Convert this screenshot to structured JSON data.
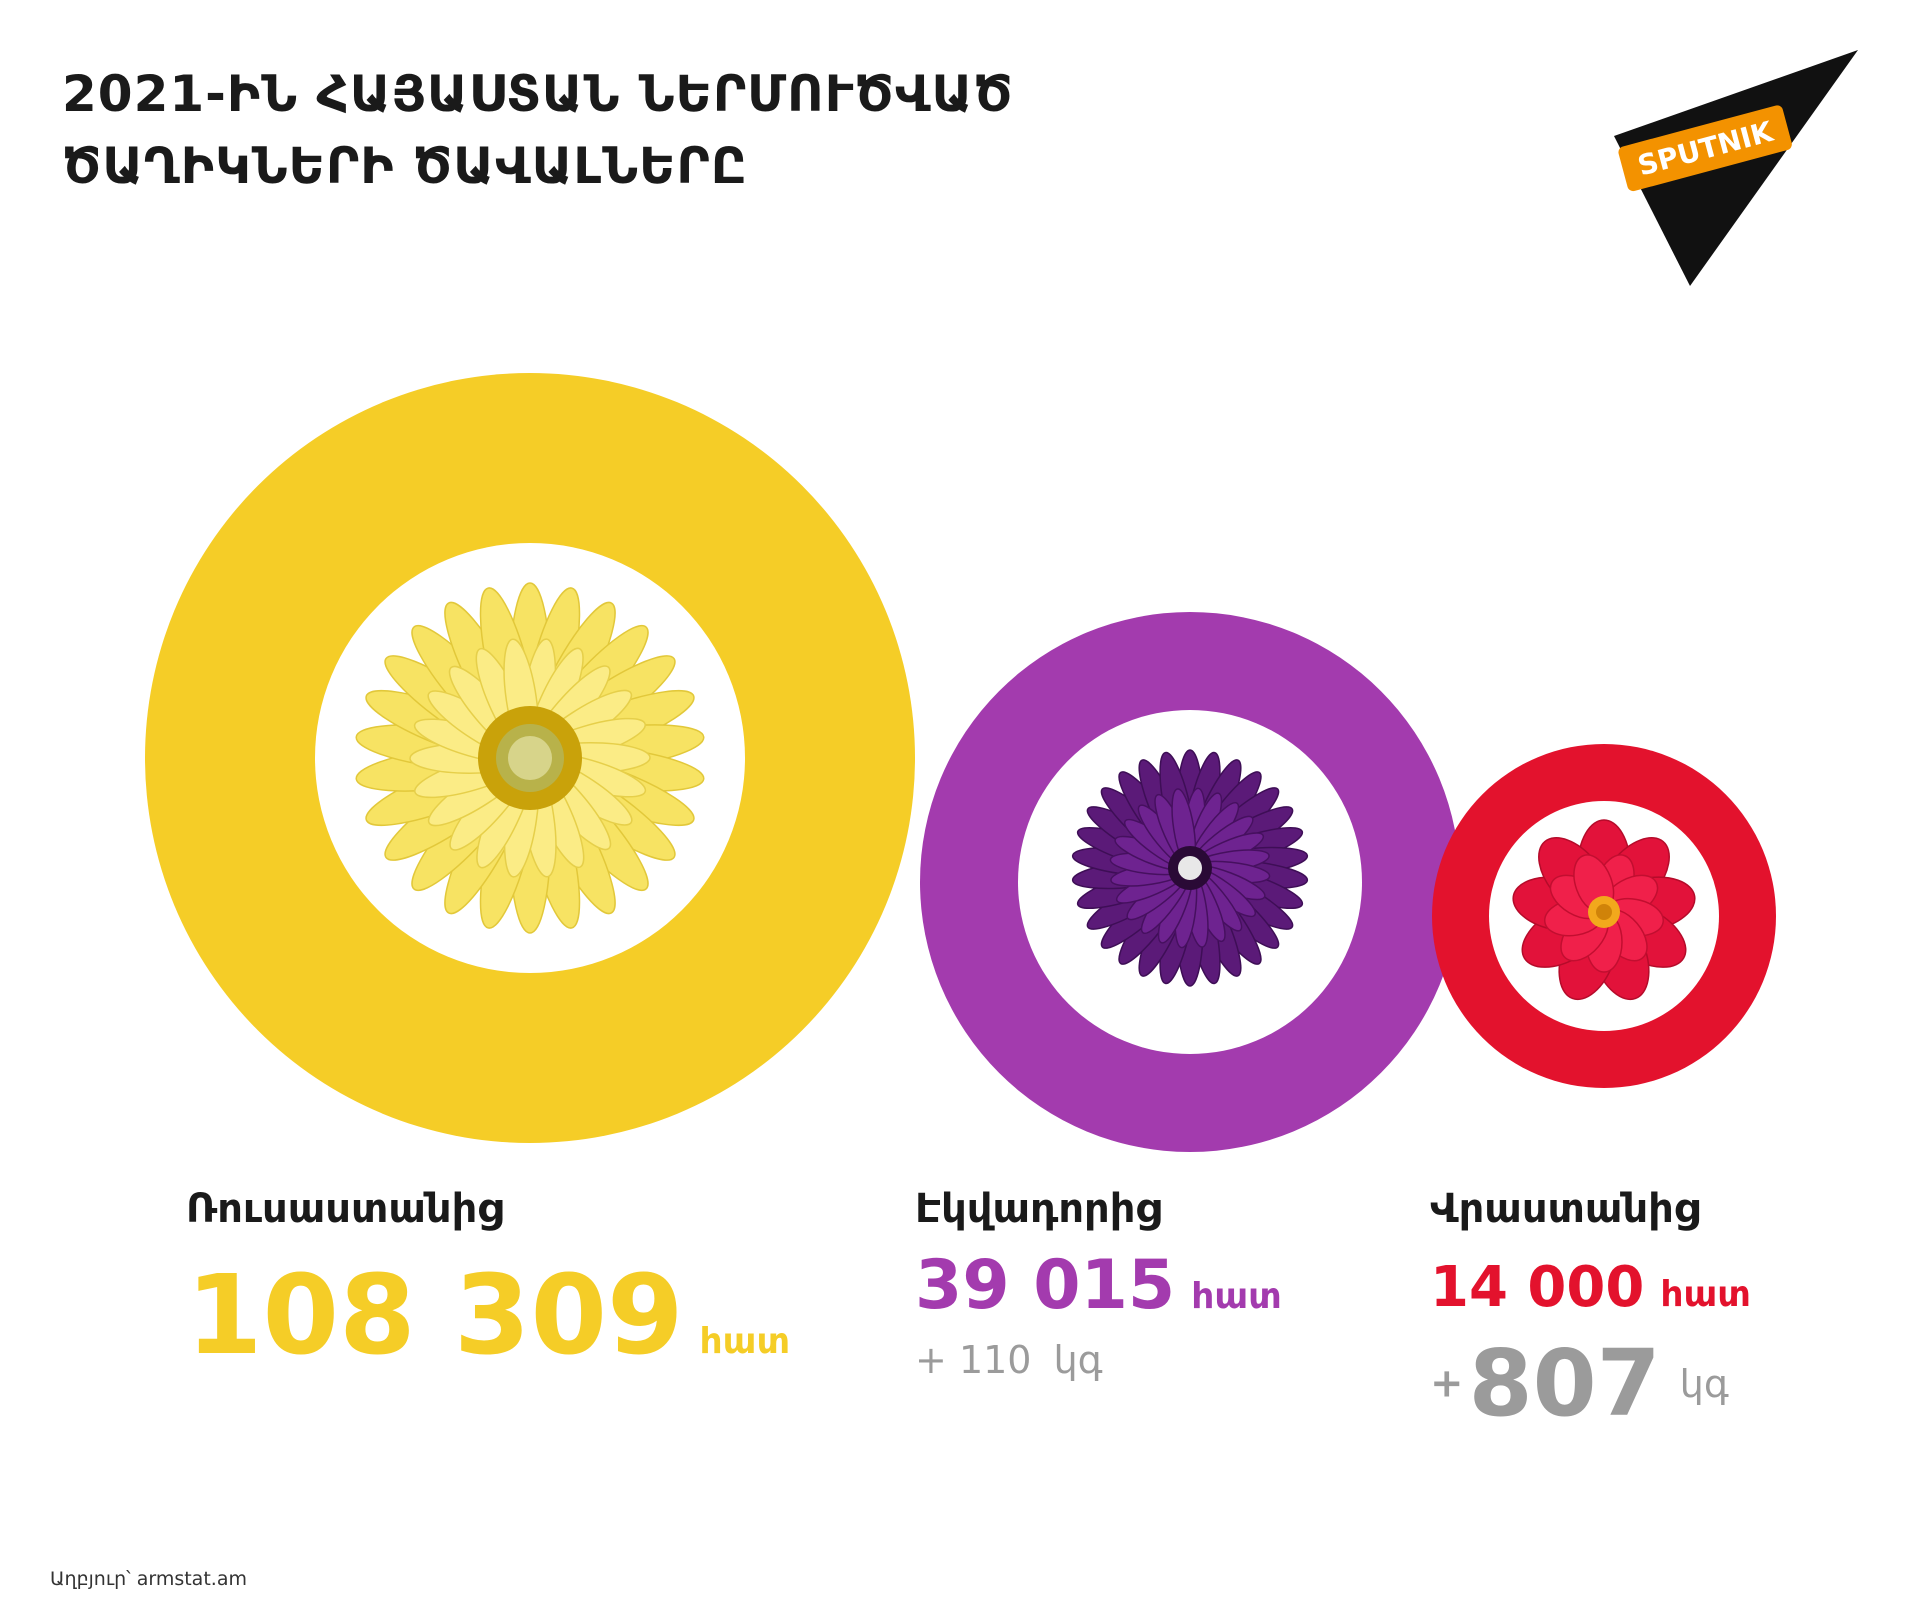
{
  "title_lines": [
    "2021-ԻՆ ՀԱՅԱՍՏԱՆ ՆԵՐՄՈՒԾՎԱԾ",
    "ԾԱՂԻԿՆԵՐԻ ԾԱՎԱԼՆԵՐԸ"
  ],
  "logo_text": "SPUTNIK",
  "source": "Աղբյուր՝ armstat.am",
  "colors": {
    "russia": "#F5CD27",
    "ecuador": "#A33BAE",
    "georgia": "#E3122D",
    "grey": "#9B9B9B"
  },
  "chart_data": {
    "type": "bubble",
    "series": [
      {
        "country": "Ռուսաստանից",
        "value": "108 309",
        "number": 108309,
        "unit": "հատ",
        "extra_plus": "",
        "extra_value": "",
        "extra_unit": "",
        "color": "#F5CD27",
        "flower": "yellow-gerbera"
      },
      {
        "country": "Էկվադորից",
        "value": "39 015",
        "number": 39015,
        "unit": "հատ",
        "extra_plus": "+",
        "extra_value": "110",
        "extra_unit": "կգ",
        "color": "#A33BAE",
        "flower": "purple-gerbera"
      },
      {
        "country": "Վրաստանից",
        "value": "14 000",
        "number": 14000,
        "unit": "հատ",
        "extra_plus": "+",
        "extra_value": "807",
        "extra_unit": "կգ",
        "color": "#E3122D",
        "flower": "red-dahlia"
      }
    ]
  }
}
